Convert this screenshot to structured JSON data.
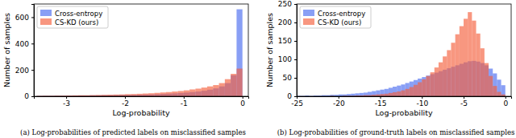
{
  "chart_data": [
    {
      "type": "histogram",
      "caption": "(a) Log-probabilities of predicted labels on misclassified samples",
      "x_label": "Log-probability",
      "y_label": "Number of samples",
      "xlim": [
        -3.55,
        0.1
      ],
      "xticks": [
        -3,
        -2,
        -1,
        0
      ],
      "ylim": [
        0,
        700
      ],
      "yticks": [
        0,
        200,
        400,
        600
      ],
      "legend": "upper left",
      "bins": [
        -3.5,
        -3.4,
        -3.3,
        -3.2,
        -3.1,
        -3.0,
        -2.9,
        -2.8,
        -2.7,
        -2.6,
        -2.5,
        -2.4,
        -2.3,
        -2.2,
        -2.1,
        -2.0,
        -1.9,
        -1.8,
        -1.7,
        -1.6,
        -1.5,
        -1.4,
        -1.3,
        -1.2,
        -1.1,
        -1.0,
        -0.9,
        -0.8,
        -0.7,
        -0.6,
        -0.5,
        -0.4,
        -0.3,
        -0.2,
        -0.1,
        0.0
      ],
      "series": [
        {
          "name": "Cross-entropy",
          "color": "#4a6cf0",
          "values": [
            2,
            3,
            3,
            4,
            4,
            5,
            5,
            6,
            6,
            7,
            7,
            8,
            8,
            9,
            10,
            10,
            11,
            12,
            13,
            14,
            16,
            18,
            20,
            22,
            25,
            28,
            32,
            36,
            42,
            50,
            60,
            75,
            100,
            160,
            660
          ]
        },
        {
          "name": "CS-KD (ours)",
          "color": "#f4603c",
          "values": [
            3,
            4,
            4,
            5,
            5,
            6,
            7,
            8,
            8,
            9,
            10,
            11,
            12,
            13,
            14,
            16,
            17,
            19,
            21,
            23,
            26,
            29,
            32,
            36,
            40,
            45,
            52,
            58,
            66,
            75,
            85,
            100,
            130,
            170,
            210
          ]
        }
      ]
    },
    {
      "type": "histogram",
      "caption": "(b) Log-probabilities of ground-truth labels on misclassified samples",
      "x_label": "Log-probability",
      "y_label": "Number of samples",
      "xlim": [
        -25,
        0.7
      ],
      "xticks": [
        -25,
        -20,
        -15,
        -10,
        -5,
        0
      ],
      "ylim": [
        0,
        250
      ],
      "yticks": [
        0,
        50,
        100,
        150,
        200,
        250
      ],
      "legend": "upper left",
      "bins": [
        -25.0,
        -24.5,
        -24.0,
        -23.5,
        -23.0,
        -22.5,
        -22.0,
        -21.5,
        -21.0,
        -20.5,
        -20.0,
        -19.5,
        -19.0,
        -18.5,
        -18.0,
        -17.5,
        -17.0,
        -16.5,
        -16.0,
        -15.5,
        -15.0,
        -14.5,
        -14.0,
        -13.5,
        -13.0,
        -12.5,
        -12.0,
        -11.5,
        -11.0,
        -10.5,
        -10.0,
        -9.5,
        -9.0,
        -8.5,
        -8.0,
        -7.5,
        -7.0,
        -6.5,
        -6.0,
        -5.5,
        -5.0,
        -4.5,
        -4.0,
        -3.5,
        -3.0,
        -2.5,
        -2.0,
        -1.5,
        -1.0,
        -0.5,
        0.0
      ],
      "series": [
        {
          "name": "Cross-entropy",
          "color": "#4a6cf0",
          "values": [
            1,
            1,
            2,
            1,
            2,
            2,
            3,
            3,
            4,
            4,
            5,
            5,
            6,
            7,
            8,
            9,
            10,
            12,
            14,
            16,
            18,
            20,
            23,
            26,
            29,
            32,
            36,
            40,
            44,
            48,
            52,
            56,
            60,
            64,
            68,
            72,
            76,
            80,
            84,
            88,
            92,
            95,
            96,
            94,
            90,
            84,
            75,
            62,
            45,
            30
          ]
        },
        {
          "name": "CS-KD (ours)",
          "color": "#f4603c",
          "values": [
            0,
            0,
            0,
            0,
            0,
            0,
            0,
            0,
            1,
            0,
            0,
            1,
            1,
            1,
            2,
            2,
            3,
            3,
            4,
            5,
            6,
            7,
            9,
            11,
            13,
            16,
            20,
            25,
            31,
            38,
            46,
            55,
            65,
            78,
            92,
            108,
            125,
            145,
            168,
            190,
            210,
            228,
            205,
            170,
            130,
            90,
            55,
            28,
            12,
            5
          ]
        }
      ]
    }
  ]
}
